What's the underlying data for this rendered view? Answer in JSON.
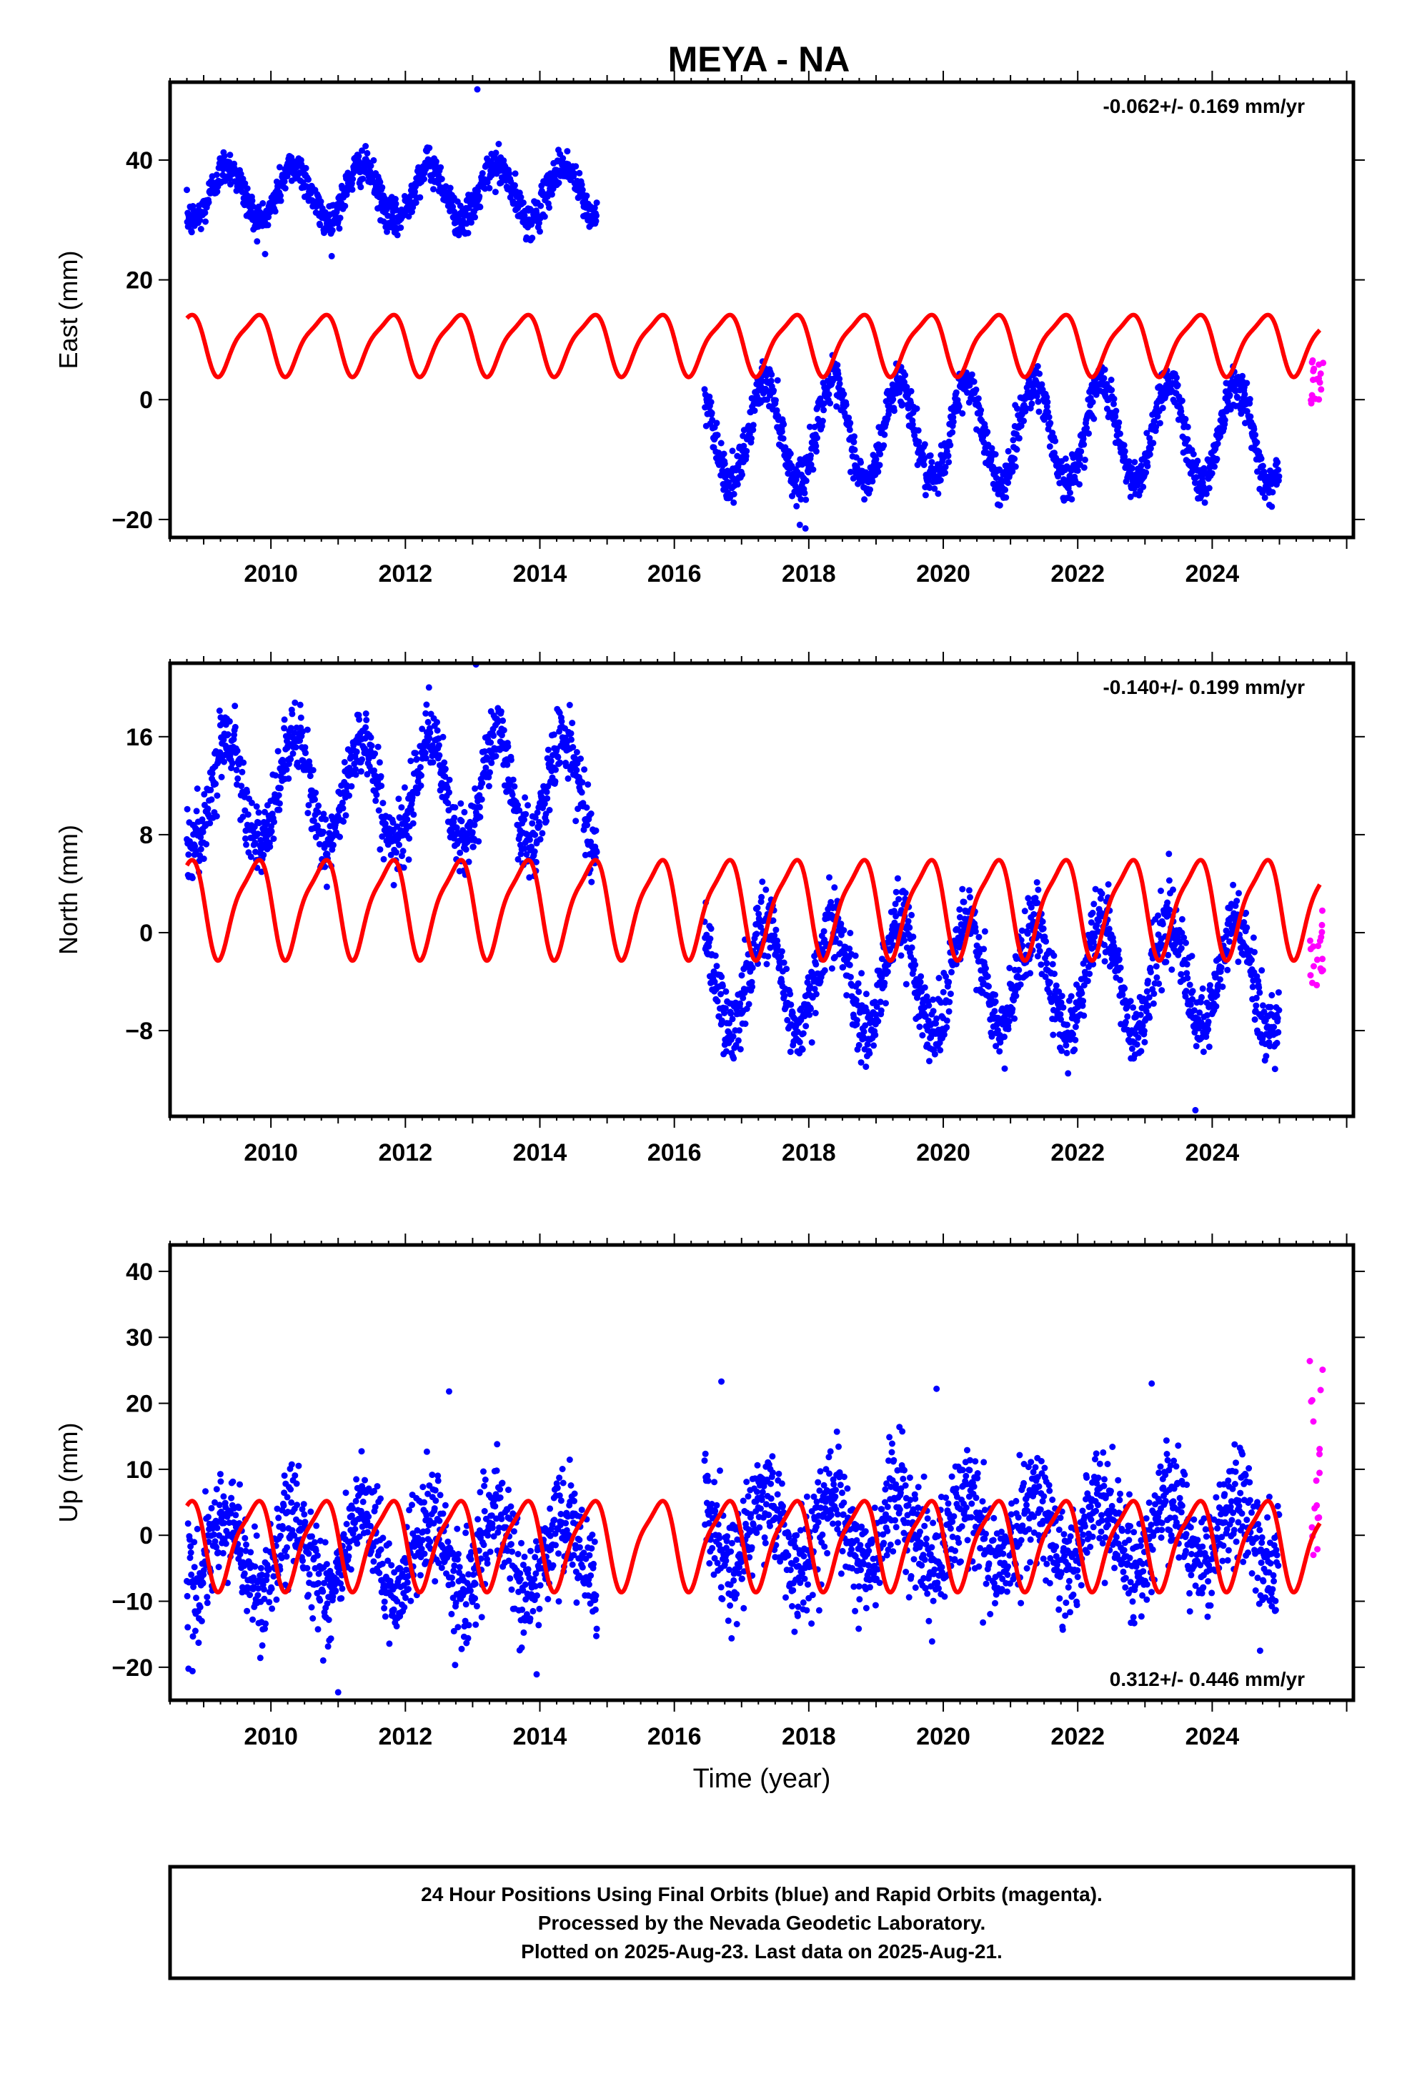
{
  "title": "MEYA - NA",
  "caption": {
    "lines": [
      "24 Hour Positions Using Final Orbits (blue) and Rapid Orbits (magenta).",
      "Processed by the Nevada Geodetic Laboratory.",
      "Plotted on 2025-Aug-23. Last data on 2025-Aug-21."
    ]
  },
  "colors": {
    "final_orbits": "#0000ff",
    "rapid_orbits": "#ff00ff",
    "model": "#ff0000",
    "frame": "#000000"
  },
  "chart_data": [
    {
      "type": "scatter",
      "component": "east",
      "ylabel": "East (mm)",
      "xlabel": "",
      "xlim": [
        2008.5,
        2026.1
      ],
      "ylim": [
        -23,
        53
      ],
      "xticks": [
        2010,
        2012,
        2014,
        2016,
        2018,
        2020,
        2022,
        2024
      ],
      "yticks": [
        -20,
        0,
        20,
        40
      ],
      "rate_text": "-0.062+/- 0.169 mm/yr",
      "rate_position": "top-right",
      "segments": [
        {
          "start": 2008.75,
          "end": 2014.85,
          "offset": 34.5,
          "amplitude": 4.5,
          "scatter": 1.5
        },
        {
          "start": 2016.45,
          "end": 2025.0,
          "offset": -5.5,
          "amplitude": 8.5,
          "scatter": 1.8
        }
      ],
      "rapid": {
        "start": 2025.45,
        "end": 2025.65,
        "min": -1,
        "max": 7
      },
      "model": {
        "start": 2008.75,
        "end": 2025.6,
        "min": 3.5,
        "max": 15.5
      },
      "outliers": [
        [
          2013.07,
          51.8
        ],
        [
          2017.95,
          -21.5
        ]
      ]
    },
    {
      "type": "scatter",
      "component": "north",
      "ylabel": "North (mm)",
      "xlabel": "",
      "xlim": [
        2008.5,
        2026.1
      ],
      "ylim": [
        -15,
        22
      ],
      "xticks": [
        2010,
        2012,
        2014,
        2016,
        2018,
        2020,
        2022,
        2024
      ],
      "yticks": [
        -8,
        0,
        8,
        16
      ],
      "rate_text": "-0.140+/- 0.199 mm/yr",
      "rate_position": "top-right",
      "segments": [
        {
          "start": 2008.75,
          "end": 2014.85,
          "offset": 11.5,
          "amplitude": 4.5,
          "scatter": 1.4
        },
        {
          "start": 2016.45,
          "end": 2025.0,
          "offset": -3.5,
          "amplitude": 4.5,
          "scatter": 1.5
        }
      ],
      "rapid": {
        "start": 2025.45,
        "end": 2025.65,
        "min": -4.5,
        "max": 2
      },
      "model": {
        "start": 2008.75,
        "end": 2025.6,
        "min": -2.5,
        "max": 7
      },
      "outliers": [
        [
          2013.05,
          21.9
        ],
        [
          2023.75,
          -14.5
        ]
      ]
    },
    {
      "type": "scatter",
      "component": "up",
      "ylabel": "Up (mm)",
      "xlabel": "Time (year)",
      "xlim": [
        2008.5,
        2026.1
      ],
      "ylim": [
        -25,
        44
      ],
      "xticks": [
        2010,
        2012,
        2014,
        2016,
        2018,
        2020,
        2022,
        2024
      ],
      "yticks": [
        -20,
        -10,
        0,
        10,
        20,
        30,
        40
      ],
      "rate_text": "0.312+/- 0.446 mm/yr",
      "rate_position": "bottom-right",
      "segments": [
        {
          "start": 2008.75,
          "end": 2014.85,
          "offset": -3.0,
          "amplitude": 5.5,
          "scatter": 4.0
        },
        {
          "start": 2016.45,
          "end": 2025.0,
          "offset": 0.5,
          "amplitude": 5.5,
          "scatter": 4.0
        }
      ],
      "rapid": {
        "start": 2025.45,
        "end": 2025.65,
        "min": -5,
        "max": 27
      },
      "model": {
        "start": 2008.75,
        "end": 2025.6,
        "min": -9,
        "max": 7
      },
      "outliers": [
        [
          2011.0,
          -23.8
        ],
        [
          2012.65,
          21.8
        ],
        [
          2016.7,
          23.3
        ],
        [
          2023.1,
          23.0
        ],
        [
          2019.9,
          22.2
        ]
      ]
    }
  ]
}
